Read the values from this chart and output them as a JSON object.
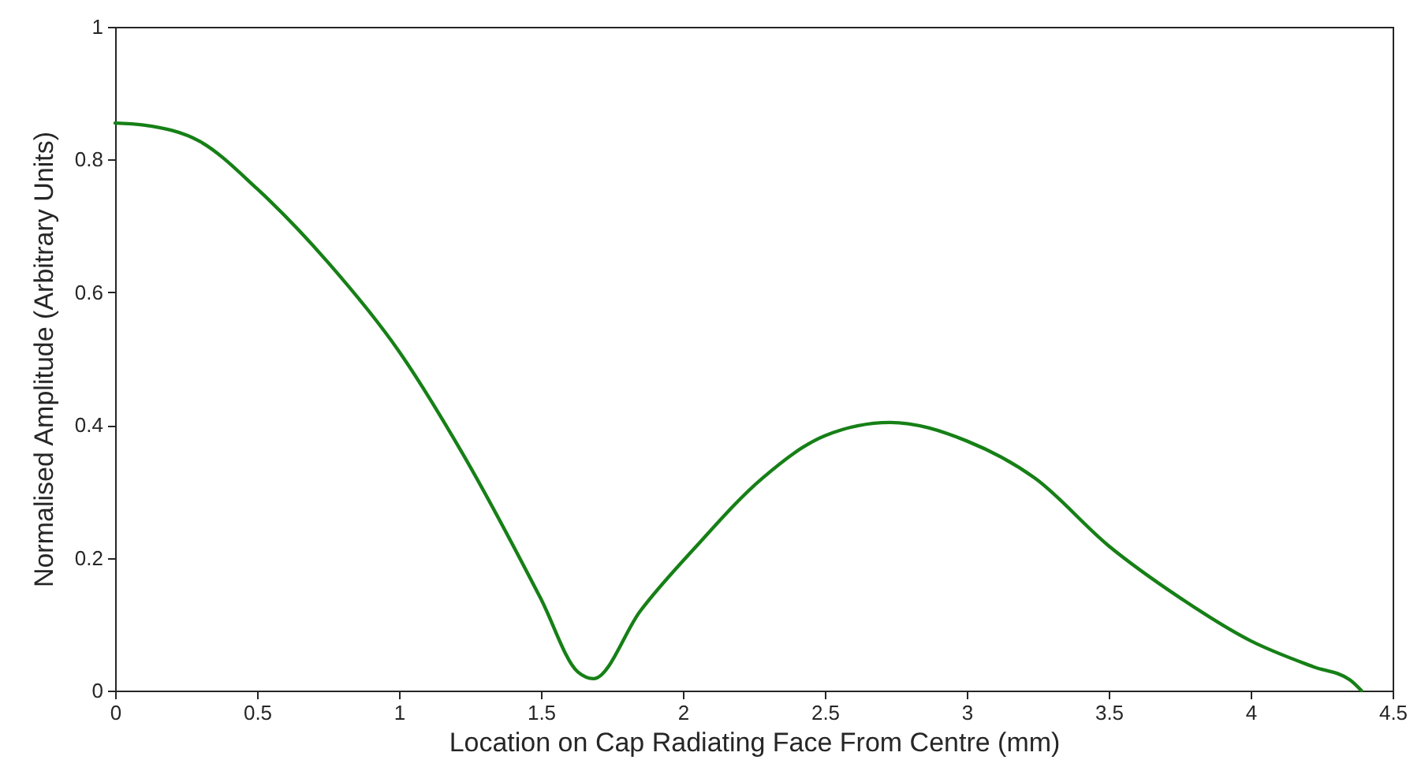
{
  "chart_data": {
    "type": "line",
    "xlabel": "Location on Cap Radiating Face From Centre (mm)",
    "ylabel": "Normalised Amplitude (Arbitrary Units)",
    "x": [
      0,
      0.1,
      0.3,
      0.5,
      0.75,
      1,
      1.22,
      1.5,
      1.63,
      1.685,
      1.85,
      2.04,
      2.28,
      2.5,
      2.73,
      3,
      3.24,
      3.5,
      3.74,
      4,
      4.22,
      4.35,
      4.39
    ],
    "series": [
      {
        "color": "#168016",
        "values": [
          0.855,
          0.852,
          0.827,
          0.756,
          0.645,
          0.511,
          0.36,
          0.138,
          0.028,
          0.018,
          0.12,
          0.214,
          0.32,
          0.384,
          0.404,
          0.376,
          0.32,
          0.218,
          0.143,
          0.075,
          0.036,
          0.016,
          0
        ]
      }
    ],
    "xlim": [
      0,
      4.5
    ],
    "xticks": [
      0,
      0.5,
      1,
      1.5,
      2,
      2.5,
      3,
      3.5,
      4,
      4.5
    ],
    "ylim": [
      0,
      1
    ],
    "yticks": [
      0,
      0.2,
      0.4,
      0.6,
      0.8,
      1
    ],
    "grid": false,
    "marker": "none",
    "line_style": "solid"
  }
}
